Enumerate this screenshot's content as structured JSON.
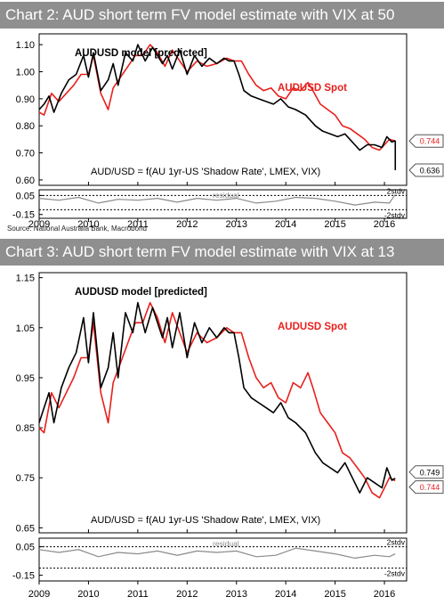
{
  "charts": [
    {
      "header": "Chart 2: AUD short term FV model estimate with VIX at 50",
      "source": "Source: National Australia Bank, Macrobond"
    },
    {
      "header": "Chart 3:  AUD short term FV model estimate with VIX at 13",
      "source": ""
    }
  ],
  "colors": {
    "model": "#000000",
    "spot": "#e8201c",
    "residual": "#8a8a8a",
    "header_bg": "#8f8f8f"
  },
  "chart_data": [
    {
      "type": "line",
      "title": "Chart 2: AUD short term FV model estimate with VIX at 50",
      "series_labels": {
        "model": "AUDUSD model [predicted]",
        "spot": "AUDUSD Spot"
      },
      "formula": "AUD/USD = f(AU 1yr-US 'Shadow Rate', LMEX, VIX)",
      "ylim": [
        0.58,
        1.14
      ],
      "yticks": [
        "1.10",
        "1.00",
        "0.90",
        "0.80",
        "0.70",
        "0.60"
      ],
      "ytick_values": [
        1.1,
        1.0,
        0.9,
        0.8,
        0.7,
        0.6
      ],
      "xlim": [
        2009.0,
        2016.45
      ],
      "xticks": [
        "2009",
        "2010",
        "2011",
        "2012",
        "2013",
        "2014",
        "2015",
        "2016"
      ],
      "xtick_values": [
        2009.0,
        2010.0,
        2011.0,
        2012.0,
        2013.0,
        2014.0,
        2015.0,
        2016.0
      ],
      "end_labels": [
        {
          "text": "0.744",
          "value": 0.744,
          "color": "#e8201c"
        },
        {
          "text": "0.636",
          "value": 0.636,
          "color": "#000000"
        }
      ],
      "model_drop_to": 0.636,
      "series": [
        {
          "name": "AUDUSD model [predicted]",
          "x": [
            2009.0,
            2009.1,
            2009.2,
            2009.3,
            2009.45,
            2009.6,
            2009.75,
            2009.9,
            2010.0,
            2010.1,
            2010.25,
            2010.4,
            2010.5,
            2010.6,
            2010.75,
            2010.9,
            2011.0,
            2011.15,
            2011.3,
            2011.5,
            2011.6,
            2011.7,
            2011.85,
            2012.0,
            2012.15,
            2012.3,
            2012.45,
            2012.6,
            2012.75,
            2012.85,
            2012.95,
            2013.05,
            2013.15,
            2013.3,
            2013.45,
            2013.6,
            2013.75,
            2013.9,
            2014.05,
            2014.2,
            2014.4,
            2014.6,
            2014.75,
            2014.9,
            2015.05,
            2015.2,
            2015.35,
            2015.5,
            2015.65,
            2015.8,
            2015.95,
            2016.05,
            2016.15,
            2016.22
          ],
          "values": [
            0.86,
            0.88,
            0.91,
            0.85,
            0.92,
            0.97,
            0.99,
            1.06,
            0.98,
            1.07,
            0.93,
            0.97,
            1.03,
            0.95,
            1.07,
            1.04,
            1.1,
            1.04,
            1.09,
            1.03,
            1.06,
            1.01,
            1.08,
            0.99,
            1.06,
            1.02,
            1.05,
            1.03,
            1.05,
            1.04,
            1.04,
            0.99,
            0.93,
            0.91,
            0.9,
            0.89,
            0.88,
            0.9,
            0.87,
            0.86,
            0.84,
            0.8,
            0.78,
            0.77,
            0.76,
            0.77,
            0.74,
            0.71,
            0.73,
            0.73,
            0.72,
            0.76,
            0.74,
            0.745
          ]
        },
        {
          "name": "AUDUSD Spot",
          "x": [
            2009.0,
            2009.1,
            2009.25,
            2009.4,
            2009.55,
            2009.7,
            2009.85,
            2010.0,
            2010.1,
            2010.25,
            2010.4,
            2010.5,
            2010.65,
            2010.8,
            2010.95,
            2011.1,
            2011.25,
            2011.4,
            2011.55,
            2011.7,
            2011.85,
            2012.0,
            2012.2,
            2012.4,
            2012.6,
            2012.8,
            2012.95,
            2013.1,
            2013.25,
            2013.4,
            2013.55,
            2013.7,
            2013.85,
            2014.0,
            2014.15,
            2014.3,
            2014.45,
            2014.55,
            2014.7,
            2014.85,
            2015.0,
            2015.15,
            2015.3,
            2015.45,
            2015.6,
            2015.75,
            2015.9,
            2016.0,
            2016.1,
            2016.22
          ],
          "values": [
            0.85,
            0.84,
            0.92,
            0.89,
            0.92,
            0.95,
            0.99,
            0.99,
            1.06,
            0.92,
            0.86,
            0.94,
            0.98,
            1.02,
            1.06,
            1.06,
            1.1,
            1.07,
            1.02,
            1.08,
            1.04,
            1.0,
            1.04,
            1.02,
            1.03,
            1.05,
            1.04,
            1.04,
            0.99,
            0.95,
            0.93,
            0.94,
            0.91,
            0.9,
            0.94,
            0.93,
            0.96,
            0.93,
            0.88,
            0.86,
            0.84,
            0.8,
            0.79,
            0.77,
            0.75,
            0.72,
            0.71,
            0.73,
            0.75,
            0.744
          ]
        }
      ],
      "residual": {
        "label": "residual",
        "ylim": [
          -0.19,
          0.11
        ],
        "yticks": [
          "0.05",
          "-0.15"
        ],
        "ytick_values": [
          0.05,
          -0.15
        ],
        "band_labels": [
          "2stdv",
          "-2stdv"
        ],
        "band_values": [
          0.05,
          -0.1
        ],
        "x": [
          2009.0,
          2009.4,
          2009.8,
          2010.2,
          2010.6,
          2011.0,
          2011.4,
          2011.8,
          2012.2,
          2012.6,
          2013.0,
          2013.4,
          2013.8,
          2014.2,
          2014.6,
          2015.0,
          2015.4,
          2015.8,
          2016.1,
          2016.22
        ],
        "values": [
          0.02,
          0.0,
          0.03,
          -0.03,
          0.01,
          0.0,
          0.02,
          -0.02,
          0.02,
          0.0,
          0.02,
          -0.03,
          -0.01,
          0.03,
          0.02,
          -0.01,
          -0.05,
          -0.02,
          -0.03,
          0.06
        ]
      }
    },
    {
      "type": "line",
      "title": "Chart 3:  AUD short term FV model estimate with VIX at 13",
      "series_labels": {
        "model": "AUDUSD model [predicted]",
        "spot": "AUDUSD Spot"
      },
      "formula": "AUD/USD = f(AU 1yr-US 'Shadow Rate', LMEX, VIX)",
      "ylim": [
        0.64,
        1.16
      ],
      "yticks": [
        "1.15",
        "1.05",
        "0.95",
        "0.85",
        "0.75",
        "0.65"
      ],
      "ytick_values": [
        1.15,
        1.05,
        0.95,
        0.85,
        0.75,
        0.65
      ],
      "xlim": [
        2009.0,
        2016.45
      ],
      "xticks": [
        "2009",
        "2010",
        "2011",
        "2012",
        "2013",
        "2014",
        "2015",
        "2016"
      ],
      "xtick_values": [
        2009.0,
        2010.0,
        2011.0,
        2012.0,
        2013.0,
        2014.0,
        2015.0,
        2016.0
      ],
      "end_labels": [
        {
          "text": "0.749",
          "value": 0.749,
          "color": "#000000"
        },
        {
          "text": "0.744",
          "value": 0.744,
          "color": "#e8201c"
        }
      ],
      "model_drop_to": null,
      "series": [
        {
          "name": "AUDUSD model [predicted]",
          "x": [
            2009.0,
            2009.1,
            2009.2,
            2009.3,
            2009.45,
            2009.6,
            2009.75,
            2009.9,
            2010.0,
            2010.1,
            2010.25,
            2010.4,
            2010.5,
            2010.6,
            2010.75,
            2010.9,
            2011.0,
            2011.15,
            2011.3,
            2011.5,
            2011.6,
            2011.7,
            2011.85,
            2012.0,
            2012.15,
            2012.3,
            2012.45,
            2012.6,
            2012.75,
            2012.85,
            2012.95,
            2013.05,
            2013.15,
            2013.3,
            2013.45,
            2013.6,
            2013.75,
            2013.9,
            2014.05,
            2014.2,
            2014.4,
            2014.6,
            2014.75,
            2014.9,
            2015.05,
            2015.2,
            2015.35,
            2015.5,
            2015.65,
            2015.8,
            2015.95,
            2016.05,
            2016.15,
            2016.22
          ],
          "values": [
            0.86,
            0.89,
            0.92,
            0.86,
            0.93,
            0.97,
            1.0,
            1.07,
            0.98,
            1.08,
            0.93,
            0.97,
            1.04,
            0.95,
            1.08,
            1.04,
            1.1,
            1.04,
            1.09,
            1.03,
            1.07,
            1.01,
            1.08,
            0.99,
            1.06,
            1.02,
            1.05,
            1.03,
            1.05,
            1.04,
            1.04,
            0.99,
            0.93,
            0.91,
            0.9,
            0.89,
            0.88,
            0.9,
            0.87,
            0.86,
            0.84,
            0.8,
            0.78,
            0.77,
            0.76,
            0.78,
            0.75,
            0.72,
            0.75,
            0.74,
            0.73,
            0.77,
            0.745,
            0.749
          ]
        },
        {
          "name": "AUDUSD Spot",
          "x": [
            2009.0,
            2009.1,
            2009.25,
            2009.4,
            2009.55,
            2009.7,
            2009.85,
            2010.0,
            2010.1,
            2010.25,
            2010.4,
            2010.5,
            2010.65,
            2010.8,
            2010.95,
            2011.1,
            2011.25,
            2011.4,
            2011.55,
            2011.7,
            2011.85,
            2012.0,
            2012.2,
            2012.4,
            2012.6,
            2012.8,
            2012.95,
            2013.1,
            2013.25,
            2013.4,
            2013.55,
            2013.7,
            2013.85,
            2014.0,
            2014.15,
            2014.3,
            2014.45,
            2014.55,
            2014.7,
            2014.85,
            2015.0,
            2015.15,
            2015.3,
            2015.45,
            2015.6,
            2015.75,
            2015.9,
            2016.0,
            2016.1,
            2016.22
          ],
          "values": [
            0.85,
            0.84,
            0.92,
            0.89,
            0.92,
            0.95,
            0.99,
            0.99,
            1.06,
            0.92,
            0.86,
            0.94,
            0.98,
            1.02,
            1.06,
            1.06,
            1.1,
            1.07,
            1.02,
            1.08,
            1.04,
            1.0,
            1.04,
            1.02,
            1.03,
            1.05,
            1.04,
            1.04,
            0.99,
            0.95,
            0.93,
            0.94,
            0.91,
            0.9,
            0.94,
            0.93,
            0.96,
            0.93,
            0.88,
            0.86,
            0.84,
            0.8,
            0.79,
            0.77,
            0.75,
            0.72,
            0.71,
            0.73,
            0.75,
            0.744
          ]
        }
      ],
      "residual": {
        "label": "residual",
        "ylim": [
          -0.19,
          0.11
        ],
        "yticks": [
          "0.05",
          "-0.15"
        ],
        "ytick_values": [
          0.05,
          -0.15
        ],
        "band_labels": [
          "2stdv",
          "-2stdv"
        ],
        "band_values": [
          0.05,
          -0.1
        ],
        "x": [
          2009.0,
          2009.4,
          2009.8,
          2010.2,
          2010.6,
          2011.0,
          2011.4,
          2011.8,
          2012.2,
          2012.6,
          2013.0,
          2013.4,
          2013.8,
          2014.2,
          2014.6,
          2015.0,
          2015.4,
          2015.8,
          2016.1,
          2016.22
        ],
        "values": [
          0.03,
          0.01,
          0.03,
          -0.02,
          0.01,
          0.0,
          0.02,
          -0.01,
          0.02,
          0.01,
          0.02,
          -0.02,
          -0.01,
          0.04,
          0.02,
          0.0,
          -0.03,
          -0.01,
          -0.02,
          0.0
        ]
      }
    }
  ]
}
